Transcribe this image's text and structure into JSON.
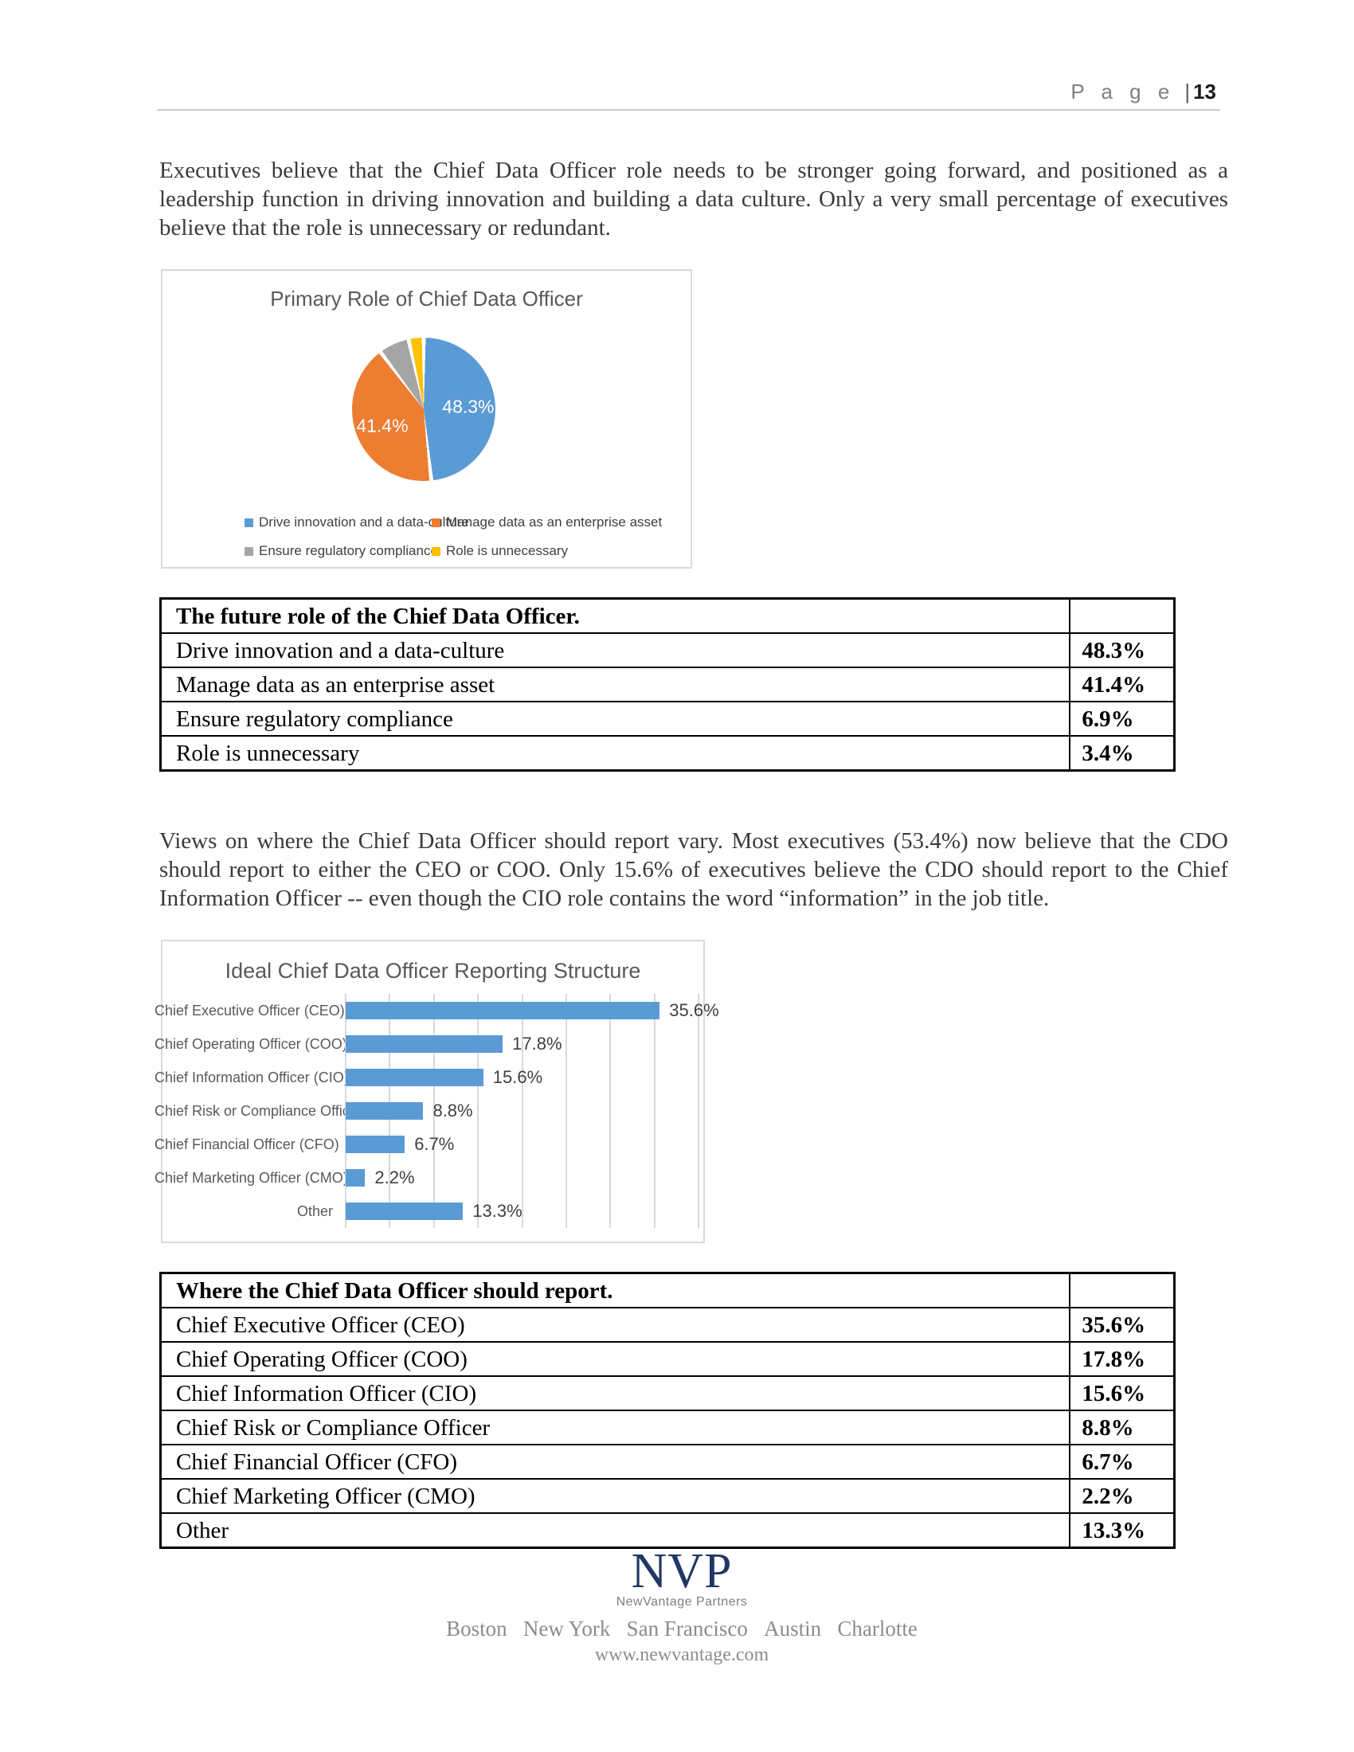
{
  "header": {
    "label": "P a g e",
    "separator": "|",
    "page_number": "13"
  },
  "paragraphs": [
    "Executives believe that the Chief Data Officer role needs to be stronger going forward, and positioned as a leadership function in driving innovation and building a data culture.  Only a very small percentage of executives believe that the role is unnecessary or redundant.",
    "Views on where the Chief Data Officer should report vary.  Most executives (53.4%) now believe that the CDO should report to either the CEO or COO.  Only 15.6% of executives believe the CDO should report to the Chief Information Officer -- even though the CIO role contains the word “information” in the job title."
  ],
  "chart_data": [
    {
      "type": "pie",
      "title": "Primary Role of Chief Data Officer",
      "labels": [
        "Drive innovation and a data-culture",
        "Manage data as an enterprise asset",
        "Ensure regulatory compliance",
        "Role is unnecessary"
      ],
      "values": [
        48.3,
        41.4,
        6.9,
        3.4
      ],
      "slice_labels": [
        "48.3%",
        "41.4%",
        "",
        ""
      ],
      "colors": [
        "#5B9BD5",
        "#ED7D31",
        "#A5A5A5",
        "#FFC000"
      ],
      "start_angle_deg": 0,
      "legend_position": "bottom",
      "legend_rows": [
        [
          0,
          1
        ],
        [
          2,
          3
        ]
      ]
    },
    {
      "type": "bar",
      "orientation": "horizontal",
      "title": "Ideal Chief Data Officer Reporting Structure",
      "categories": [
        "Chief Executive Officer (CEO)",
        "Chief Operating Officer (COO)",
        "Chief Information Officer (CIO)",
        "Chief Risk or Compliance Officer",
        "Chief Financial Officer (CFO)",
        "Chief Marketing Officer (CMO)",
        "Other"
      ],
      "values": [
        35.6,
        17.8,
        15.6,
        8.8,
        6.7,
        2.2,
        13.3
      ],
      "value_labels": [
        "35.6%",
        "17.8%",
        "15.6%",
        "8.8%",
        "6.7%",
        "2.2%",
        "13.3%"
      ],
      "bar_color": "#5B9BD5",
      "xlim": [
        0,
        40
      ],
      "gridline_step": 5,
      "grid": true,
      "legend_position": "none",
      "xlabel": "",
      "ylabel": ""
    }
  ],
  "tables": [
    {
      "header": "The future role of the Chief Data Officer.",
      "rows": [
        [
          "Drive innovation and a data-culture",
          "48.3%"
        ],
        [
          "Manage data as an enterprise asset",
          "41.4%"
        ],
        [
          "Ensure regulatory compliance",
          "6.9%"
        ],
        [
          "Role is unnecessary",
          "3.4%"
        ]
      ]
    },
    {
      "header": "Where the Chief Data Officer should report.",
      "rows": [
        [
          "Chief Executive Officer (CEO)",
          "35.6%"
        ],
        [
          "Chief Operating Officer (COO)",
          "17.8%"
        ],
        [
          "Chief Information Officer (CIO)",
          "15.6%"
        ],
        [
          "Chief Risk or Compliance Officer",
          "8.8%"
        ],
        [
          "Chief Financial Officer (CFO)",
          "6.7%"
        ],
        [
          "Chief Marketing Officer (CMO)",
          "2.2%"
        ],
        [
          "Other",
          "13.3%"
        ]
      ]
    }
  ],
  "footer": {
    "logo_text": "NVP",
    "logo_subtext": "NewVantage Partners",
    "cities": [
      "Boston",
      "New York",
      "San Francisco",
      "Austin",
      "Charlotte"
    ],
    "website": "www.newvantage.com"
  },
  "colors": {
    "accent_blue": "#5B9BD5",
    "accent_orange": "#ED7D31",
    "accent_gray": "#A5A5A5",
    "accent_yellow": "#FFC000",
    "logo_navy": "#1F3864",
    "chart_text": "#595959",
    "grid_line": "#D9D9D9"
  }
}
